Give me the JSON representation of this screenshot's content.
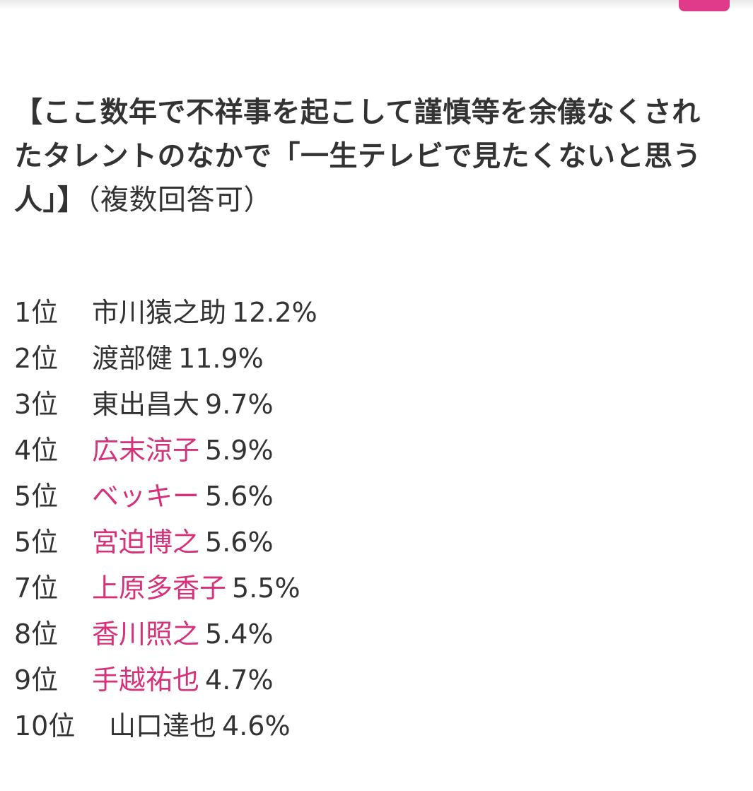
{
  "heading": {
    "title": "【ここ数年で不祥事を起こして謹慎等を余儀なくされたタレントのなかで「一生テレビで見たくないと思う人」】",
    "note": "（複数回答可）"
  },
  "colors": {
    "link": "#d6317a",
    "accent": "#e03a8a",
    "text": "#333333"
  },
  "ranking": [
    {
      "rank": "1位",
      "name": "市川猿之助",
      "percent": "12.2%",
      "linked": false
    },
    {
      "rank": "2位",
      "name": "渡部健",
      "percent": "11.9%",
      "linked": false
    },
    {
      "rank": "3位",
      "name": "東出昌大",
      "percent": "9.7%",
      "linked": false
    },
    {
      "rank": "4位",
      "name": "広末涼子",
      "percent": "5.9%",
      "linked": true
    },
    {
      "rank": "5位",
      "name": "ベッキー",
      "percent": "5.6%",
      "linked": true
    },
    {
      "rank": "5位",
      "name": "宮迫博之",
      "percent": "5.6%",
      "linked": true
    },
    {
      "rank": "7位",
      "name": "上原多香子",
      "percent": "5.5%",
      "linked": true
    },
    {
      "rank": "8位",
      "name": "香川照之",
      "percent": "5.4%",
      "linked": true
    },
    {
      "rank": "9位",
      "name": "手越祐也",
      "percent": "4.7%",
      "linked": true
    },
    {
      "rank": "10位",
      "name": "山口達也",
      "percent": "4.6%",
      "linked": false
    }
  ]
}
